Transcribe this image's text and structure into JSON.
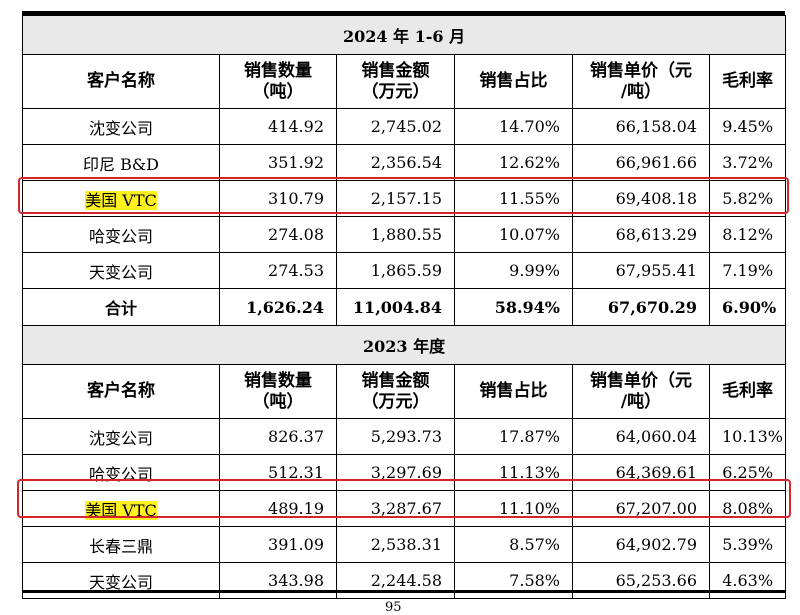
{
  "headers": {
    "customer": "客户名称",
    "qty_line1": "销售数量",
    "qty_line2": "（吨）",
    "amount_line1": "销售金额",
    "amount_line2": "（万元）",
    "share": "销售占比",
    "unit_price_line1": "销售单价（元",
    "unit_price_line2": "/吨）",
    "margin": "毛利率"
  },
  "sections": [
    {
      "title": "2024 年 1-6 月",
      "rows": [
        {
          "name": "沈变公司",
          "qty": "414.92",
          "amount": "2,745.02",
          "share": "14.70%",
          "unit_price": "66,158.04",
          "margin": "9.45%"
        },
        {
          "name": "印尼 B&D",
          "qty": "351.92",
          "amount": "2,356.54",
          "share": "12.62%",
          "unit_price": "66,961.66",
          "margin": "3.72%"
        },
        {
          "name": "美国 VTC",
          "qty": "310.79",
          "amount": "2,157.15",
          "share": "11.55%",
          "unit_price": "69,408.18",
          "margin": "5.82%"
        },
        {
          "name": "哈变公司",
          "qty": "274.08",
          "amount": "1,880.55",
          "share": "10.07%",
          "unit_price": "68,613.29",
          "margin": "8.12%"
        },
        {
          "name": "天变公司",
          "qty": "274.53",
          "amount": "1,865.59",
          "share": "9.99%",
          "unit_price": "67,955.41",
          "margin": "7.19%"
        }
      ],
      "total": {
        "name": "合计",
        "qty": "1,626.24",
        "amount": "11,004.84",
        "share": "58.94%",
        "unit_price": "67,670.29",
        "margin": "6.90%"
      }
    },
    {
      "title": "2023 年度",
      "rows": [
        {
          "name": "沈变公司",
          "qty": "826.37",
          "amount": "5,293.73",
          "share": "17.87%",
          "unit_price": "64,060.04",
          "margin": "10.13%"
        },
        {
          "name": "哈变公司",
          "qty": "512.31",
          "amount": "3,297.69",
          "share": "11.13%",
          "unit_price": "64,369.61",
          "margin": "6.25%"
        },
        {
          "name": "美国 VTC",
          "qty": "489.19",
          "amount": "3,287.67",
          "share": "11.10%",
          "unit_price": "67,207.00",
          "margin": "8.08%"
        },
        {
          "name": "长春三鼎",
          "qty": "391.09",
          "amount": "2,538.31",
          "share": "8.57%",
          "unit_price": "64,902.79",
          "margin": "5.39%"
        },
        {
          "name": "天变公司",
          "qty": "343.98",
          "amount": "2,244.58",
          "share": "7.58%",
          "unit_price": "65,253.66",
          "margin": "4.63%"
        }
      ]
    }
  ],
  "highlight_color": "#fff01f",
  "box_color": "#d4262a",
  "page_number": "95"
}
